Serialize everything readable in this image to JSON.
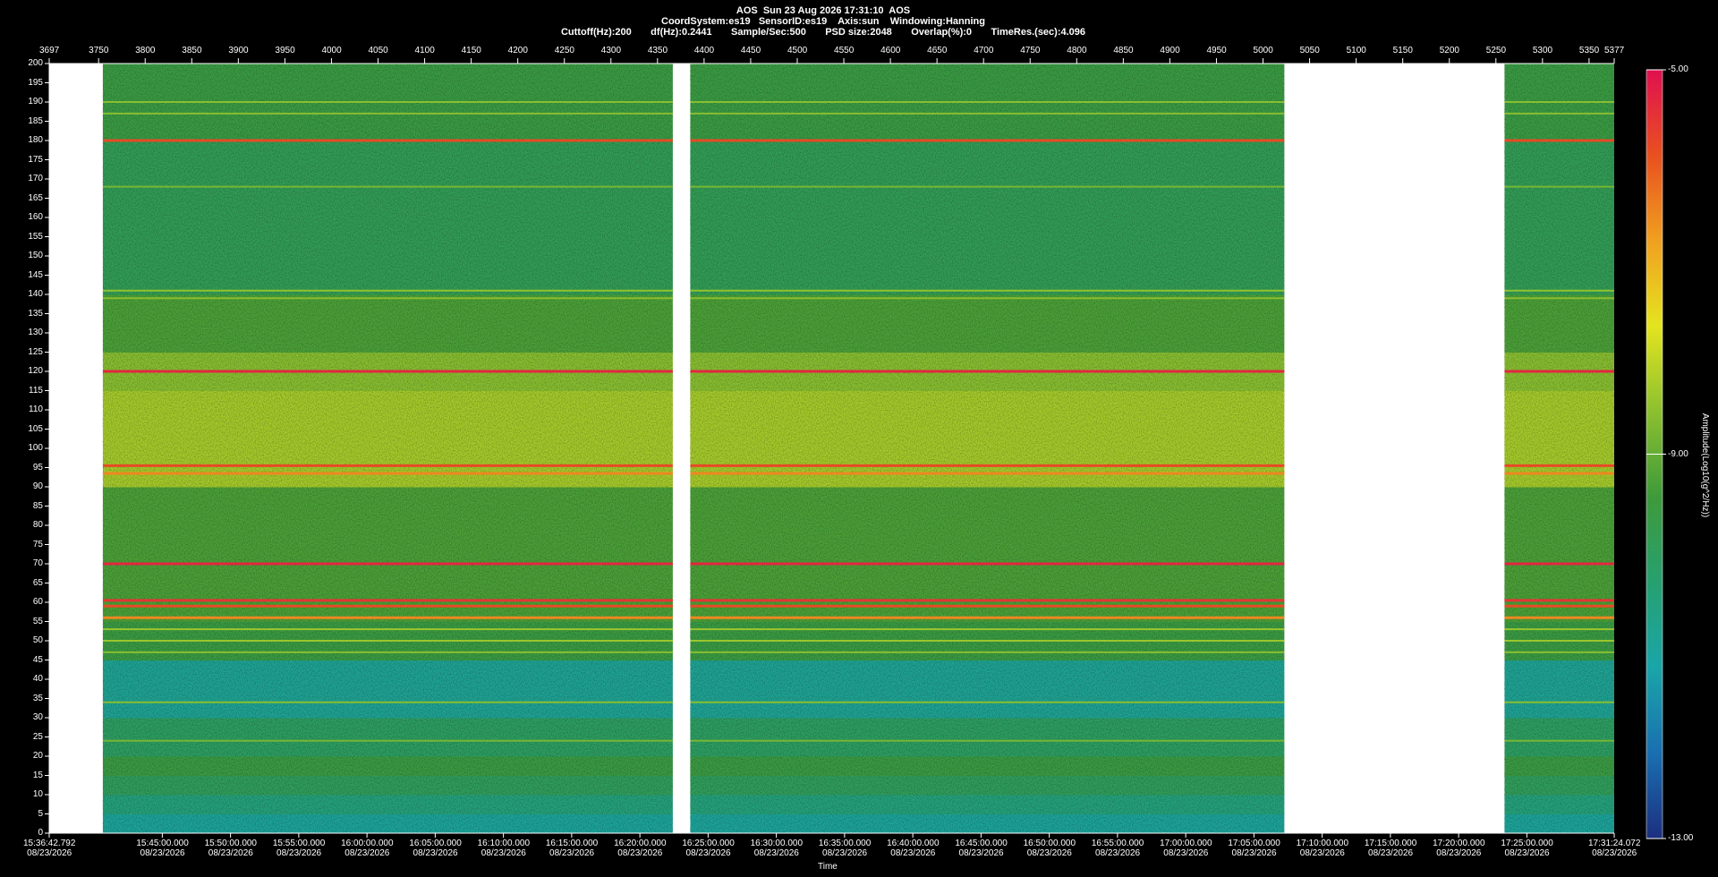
{
  "chart_data": {
    "type": "spectrogram",
    "title": "AOS  Sun 23 Aug 2026 17:31:10  AOS",
    "subtitle": "CoordSystem:es19   SensorID:es19    Axis:sun    Windowing:Hanning",
    "parameters": "Cuttoff(Hz):200       df(Hz):0.2441       Sample/Sec:500       PSD size:2048       Overlap(%):0       TimeRes.(sec):4.096",
    "xlabel": "Time",
    "colorbar_label": "Amplitude(Log10(g^2/Hz))",
    "xlim": [
      3697,
      5377
    ],
    "xticks": [
      3697,
      3750,
      3800,
      3850,
      3900,
      3950,
      4000,
      4050,
      4100,
      4150,
      4200,
      4250,
      4300,
      4350,
      4400,
      4450,
      4500,
      4550,
      4600,
      4650,
      4700,
      4750,
      4800,
      4850,
      4900,
      4950,
      5000,
      5050,
      5100,
      5150,
      5200,
      5250,
      5300,
      5350,
      5377
    ],
    "x2ticks": [
      {
        "value": 3697,
        "label": "15:36:42.792\n08/23/2026"
      },
      {
        "value": 3818.39,
        "label": "15:45:00.000\n08/23/2026"
      },
      {
        "value": 3891.63,
        "label": "15:50:00.000\n08/23/2026"
      },
      {
        "value": 3964.88,
        "label": "15:55:00.000\n08/23/2026"
      },
      {
        "value": 4038.12,
        "label": "16:00:00.000\n08/23/2026"
      },
      {
        "value": 4111.36,
        "label": "16:05:00.000\n08/23/2026"
      },
      {
        "value": 4184.6,
        "label": "16:10:00.000\n08/23/2026"
      },
      {
        "value": 4257.84,
        "label": "16:15:00.000\n08/23/2026"
      },
      {
        "value": 4331.09,
        "label": "16:20:00.000\n08/23/2026"
      },
      {
        "value": 4404.33,
        "label": "16:25:00.000\n08/23/2026"
      },
      {
        "value": 4477.57,
        "label": "16:30:00.000\n08/23/2026"
      },
      {
        "value": 4550.81,
        "label": "16:35:00.000\n08/23/2026"
      },
      {
        "value": 4624.05,
        "label": "16:40:00.000\n08/23/2026"
      },
      {
        "value": 4697.3,
        "label": "16:45:00.000\n08/23/2026"
      },
      {
        "value": 4770.54,
        "label": "16:50:00.000\n08/23/2026"
      },
      {
        "value": 4843.78,
        "label": "16:55:00.000\n08/23/2026"
      },
      {
        "value": 4917.02,
        "label": "17:00:00.000\n08/23/2026"
      },
      {
        "value": 4990.26,
        "label": "17:05:00.000\n08/23/2026"
      },
      {
        "value": 5063.51,
        "label": "17:10:00.000\n08/23/2026"
      },
      {
        "value": 5136.75,
        "label": "17:15:00.000\n08/23/2026"
      },
      {
        "value": 5209.99,
        "label": "17:20:00.000\n08/23/2026"
      },
      {
        "value": 5283.23,
        "label": "17:25:00.000\n08/23/2026"
      },
      {
        "value": 5377,
        "label": "17:31:24.072\n08/23/2026"
      }
    ],
    "ylim": [
      0,
      200
    ],
    "yticks": [
      0,
      5,
      10,
      15,
      20,
      25,
      30,
      35,
      40,
      45,
      50,
      55,
      60,
      65,
      70,
      75,
      80,
      85,
      90,
      95,
      100,
      105,
      110,
      115,
      120,
      125,
      130,
      135,
      140,
      145,
      150,
      155,
      160,
      165,
      170,
      175,
      180,
      185,
      190,
      195,
      200
    ],
    "clim": [
      -13,
      -5
    ],
    "cticks": [
      {
        "value": -5,
        "label": "-5.00"
      },
      {
        "value": -9,
        "label": "-9.00"
      },
      {
        "value": -13,
        "label": "-13.00"
      }
    ],
    "colormap": [
      "#1c2f80",
      "#1a6fb0",
      "#1aa5a8",
      "#27a070",
      "#3e9a3a",
      "#8cc030",
      "#e4e420",
      "#f0a020",
      "#e85020",
      "#e01050"
    ],
    "segments": [
      [
        3754.6,
        4366.4
      ],
      [
        4385.2,
        5022.9
      ],
      [
        5259.3,
        5377
      ]
    ],
    "bins": [
      0,
      5,
      10,
      15,
      20,
      30,
      45,
      55,
      65,
      90,
      115,
      125,
      140,
      180,
      200
    ],
    "amplitude": [
      -11,
      -10.5,
      -10,
      -9.6,
      -10.1,
      -10.9,
      -9.6,
      -9.3,
      -9.3,
      -8.3,
      -8.6,
      -9.3,
      -9.9,
      -9.6
    ],
    "lines": [
      {
        "frequency": 180,
        "amplitude": -5.8
      },
      {
        "frequency": 120,
        "amplitude": -5.3
      },
      {
        "frequency": 95.5,
        "amplitude": -5.8
      },
      {
        "frequency": 93.5,
        "amplitude": -6.5
      },
      {
        "frequency": 70,
        "amplitude": -5.3
      },
      {
        "frequency": 60.5,
        "amplitude": -5.5
      },
      {
        "frequency": 59,
        "amplitude": -5.8
      },
      {
        "frequency": 56,
        "amplitude": -6.5
      },
      {
        "frequency": 190,
        "amplitude": -8.6
      },
      {
        "frequency": 187,
        "amplitude": -8.6
      },
      {
        "frequency": 168,
        "amplitude": -8.8
      },
      {
        "frequency": 141,
        "amplitude": -8.5
      },
      {
        "frequency": 139,
        "amplitude": -8.6
      },
      {
        "frequency": 53,
        "amplitude": -8.4
      },
      {
        "frequency": 50,
        "amplitude": -8.4
      },
      {
        "frequency": 47,
        "amplitude": -8.6
      },
      {
        "frequency": 34,
        "amplitude": -8.6
      },
      {
        "frequency": 24,
        "amplitude": -8.8
      }
    ],
    "background": "#000000",
    "empty_color": "#ffffff",
    "text_color": "#ffffff"
  }
}
